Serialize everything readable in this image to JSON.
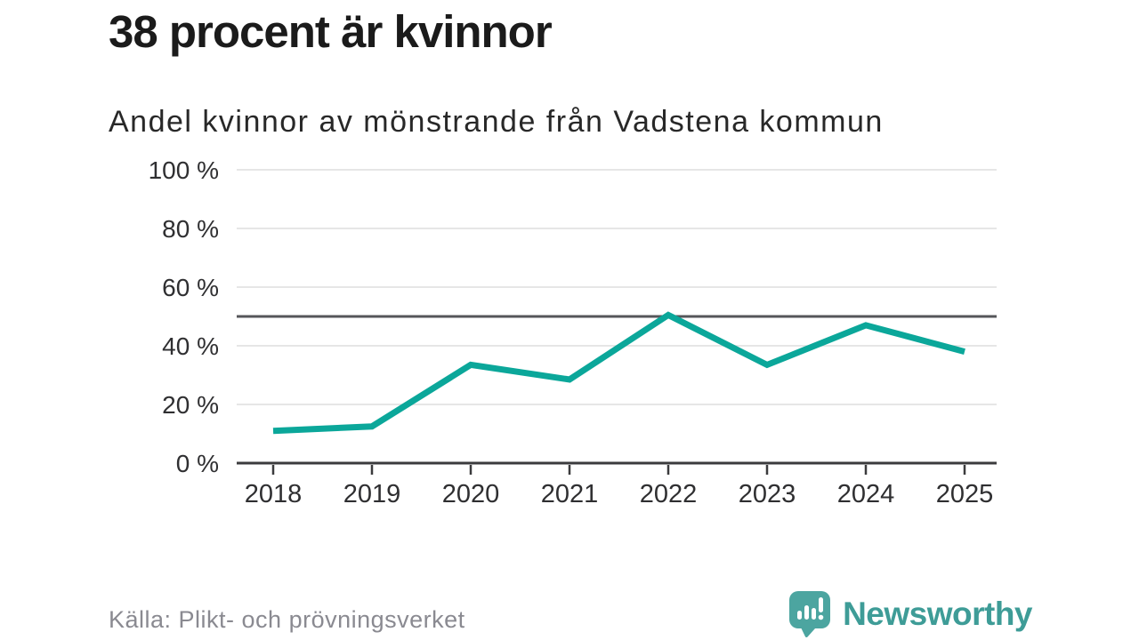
{
  "header": {
    "title": "38 procent är kvinnor",
    "subtitle": "Andel kvinnor av mönstrande från Vadstena kommun"
  },
  "chart_data": {
    "type": "line",
    "x": [
      2018,
      2019,
      2020,
      2021,
      2022,
      2023,
      2024,
      2025
    ],
    "series": [
      {
        "name": "Andel kvinnor av mönstrande",
        "values": [
          11,
          12.5,
          33.5,
          28.5,
          50.5,
          33.5,
          47,
          38
        ]
      }
    ],
    "title": "38 procent är kvinnor",
    "subtitle": "Andel kvinnor av mönstrande från Vadstena kommun",
    "xlabel": "",
    "ylabel": "",
    "ylim": [
      0,
      100
    ],
    "yticks": [
      0,
      20,
      40,
      60,
      80,
      100
    ],
    "ytick_format": "{v} %",
    "reference_line": 50,
    "grid": true,
    "legend_position": "none",
    "line_color": "#0ba79a",
    "reference_line_color": "#55565a",
    "grid_color": "#dedede",
    "axis_color": "#3b3b3d",
    "tick_label_color": "#2f2f31"
  },
  "footer": {
    "source": "Källa: Plikt- och prövningsverket",
    "brand": {
      "name": "Newsworthy",
      "text_color": "#3e9c97",
      "icon_color": "#4ca5a0",
      "icon_bar_color": "#ffffff"
    }
  }
}
